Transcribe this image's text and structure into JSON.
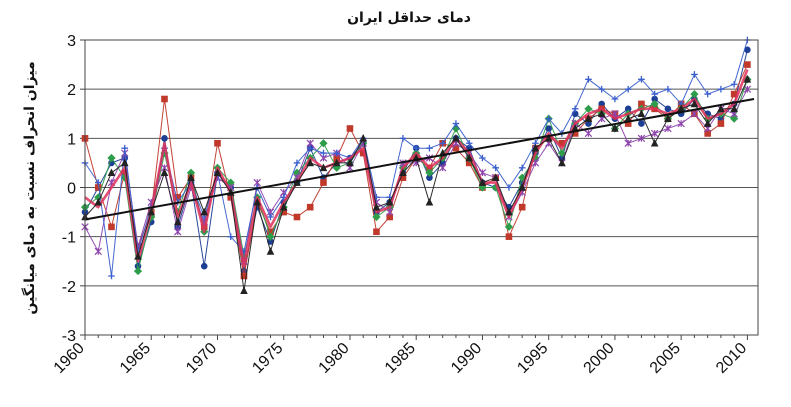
{
  "chart_data": {
    "type": "line",
    "title": "دمای حداقل ایران",
    "ylabel": "میزان انحراف نسبت به دمای میانگین",
    "xlabel": "",
    "xlim": [
      1960,
      2010.8
    ],
    "ylim": [
      -3,
      3
    ],
    "x_ticks": [
      "1960",
      "1965",
      "1970",
      "1975",
      "1980",
      "1985",
      "1990",
      "1995",
      "2000",
      "2005",
      "2010"
    ],
    "y_ticks": [
      "3",
      "2",
      "1",
      "0",
      "-1",
      "-2",
      "-3"
    ],
    "grid": "horizontal",
    "x": [
      1960,
      1961,
      1962,
      1963,
      1964,
      1965,
      1966,
      1967,
      1968,
      1969,
      1970,
      1971,
      1972,
      1973,
      1974,
      1975,
      1976,
      1977,
      1978,
      1979,
      1980,
      1981,
      1982,
      1983,
      1984,
      1985,
      1986,
      1987,
      1988,
      1989,
      1990,
      1991,
      1992,
      1993,
      1994,
      1995,
      1996,
      1997,
      1998,
      1999,
      2000,
      2001,
      2002,
      2003,
      2004,
      2005,
      2006,
      2007,
      2008,
      2009,
      2010
    ],
    "series": [
      {
        "color": "#1c3f94",
        "marker": "circle",
        "values": [
          -0.5,
          0.0,
          0.5,
          0.6,
          -1.6,
          -0.7,
          1.0,
          -0.8,
          0.1,
          -1.6,
          0.3,
          0.0,
          -1.7,
          -0.4,
          -1.1,
          -0.3,
          0.1,
          0.8,
          0.2,
          0.5,
          0.6,
          0.9,
          -0.5,
          -0.3,
          0.3,
          0.8,
          0.2,
          0.5,
          1.0,
          0.8,
          0.1,
          0.0,
          -0.4,
          0.1,
          0.7,
          1.2,
          0.6,
          1.5,
          1.3,
          1.7,
          1.4,
          1.6,
          1.3,
          1.8,
          1.6,
          1.5,
          1.8,
          1.5,
          1.4,
          1.7,
          2.8
        ]
      },
      {
        "color": "#c0392b",
        "marker": "square",
        "values": [
          1.0,
          0.0,
          -0.8,
          0.3,
          -1.2,
          -0.5,
          1.8,
          -0.2,
          0.2,
          -0.8,
          0.9,
          -0.2,
          -1.8,
          -0.3,
          -0.9,
          -0.5,
          -0.6,
          -0.4,
          0.1,
          0.6,
          1.2,
          0.7,
          -0.9,
          -0.6,
          0.2,
          0.6,
          0.4,
          0.9,
          0.8,
          0.5,
          0.0,
          0.2,
          -1.0,
          -0.4,
          0.8,
          1.0,
          0.9,
          1.1,
          1.4,
          1.6,
          1.5,
          1.3,
          1.7,
          1.6,
          1.4,
          1.7,
          1.5,
          1.1,
          1.3,
          1.9,
          2.5
        ]
      },
      {
        "color": "#2e9d4a",
        "marker": "diamond",
        "values": [
          -0.4,
          -0.2,
          0.6,
          0.2,
          -1.7,
          -0.6,
          0.7,
          -0.5,
          0.3,
          -0.9,
          0.4,
          0.1,
          -1.4,
          -0.2,
          -1.0,
          -0.4,
          0.3,
          0.6,
          0.9,
          0.4,
          0.5,
          0.9,
          -0.6,
          -0.4,
          0.4,
          0.7,
          0.3,
          0.6,
          1.2,
          0.6,
          0.0,
          0.0,
          -0.8,
          0.2,
          0.6,
          1.4,
          0.7,
          1.3,
          1.6,
          1.5,
          1.2,
          1.5,
          1.6,
          1.7,
          1.4,
          1.6,
          1.9,
          1.4,
          1.5,
          1.4,
          2.2
        ]
      },
      {
        "color": "#8e44ad",
        "marker": "star",
        "values": [
          -0.8,
          -1.3,
          0.1,
          0.7,
          -1.2,
          -0.3,
          0.4,
          -0.9,
          0.0,
          -0.7,
          0.2,
          0.0,
          -1.5,
          0.1,
          -0.5,
          -0.1,
          0.2,
          0.9,
          0.6,
          0.7,
          0.4,
          0.9,
          -0.3,
          -0.5,
          0.5,
          0.5,
          0.6,
          0.4,
          0.9,
          0.7,
          0.3,
          0.2,
          -0.6,
          -0.1,
          0.5,
          0.9,
          0.5,
          1.3,
          1.1,
          1.4,
          1.5,
          0.9,
          1.0,
          1.1,
          1.2,
          1.3,
          1.5,
          1.2,
          1.6,
          1.5,
          2.0
        ]
      },
      {
        "color": "#3a5fcd",
        "marker": "plus",
        "values": [
          0.5,
          0.1,
          -1.8,
          0.8,
          -1.3,
          -0.4,
          0.8,
          -0.3,
          0.1,
          -0.6,
          0.3,
          -1.0,
          -1.3,
          0.0,
          -0.6,
          -0.2,
          0.5,
          0.8,
          0.7,
          0.7,
          0.6,
          1.0,
          -0.2,
          -0.2,
          1.0,
          0.8,
          0.8,
          0.9,
          1.3,
          0.9,
          0.6,
          0.4,
          0.0,
          0.4,
          0.9,
          1.4,
          1.1,
          1.6,
          2.2,
          2.0,
          1.8,
          2.0,
          2.2,
          1.9,
          2.0,
          1.7,
          2.3,
          1.9,
          2.0,
          2.1,
          3.0
        ]
      },
      {
        "color": "#e0305a",
        "marker": "none",
        "values": [
          -0.2,
          -0.4,
          0.0,
          0.4,
          -1.5,
          -0.5,
          0.9,
          -0.6,
          0.1,
          -0.9,
          0.4,
          -0.1,
          -1.6,
          -0.2,
          -0.8,
          -0.3,
          0.1,
          0.6,
          0.4,
          0.5,
          0.6,
          0.8,
          -0.5,
          -0.4,
          0.4,
          0.7,
          0.4,
          0.6,
          1.0,
          0.7,
          0.1,
          0.1,
          -0.6,
          0.0,
          0.7,
          1.1,
          0.8,
          1.3,
          1.5,
          1.6,
          1.4,
          1.5,
          1.6,
          1.6,
          1.5,
          1.6,
          1.8,
          1.4,
          1.5,
          1.7,
          2.4
        ]
      },
      {
        "color": "#222222",
        "marker": "triangle",
        "values": [
          -0.6,
          -0.3,
          0.3,
          0.5,
          -1.4,
          -0.5,
          0.3,
          -0.7,
          0.2,
          -0.5,
          0.3,
          -0.1,
          -2.1,
          -0.3,
          -1.3,
          -0.4,
          0.1,
          0.5,
          0.4,
          0.5,
          0.5,
          1.0,
          -0.4,
          -0.3,
          0.3,
          0.6,
          -0.3,
          0.7,
          1.0,
          0.6,
          0.1,
          0.2,
          -0.5,
          0.0,
          0.8,
          1.0,
          0.5,
          1.2,
          1.4,
          1.5,
          1.2,
          1.4,
          1.5,
          0.9,
          1.4,
          1.6,
          1.7,
          1.3,
          1.6,
          1.6,
          2.2
        ]
      }
    ],
    "trend": {
      "color": "#111111",
      "from": [
        1960,
        -0.65
      ],
      "to": [
        2010.5,
        1.8
      ]
    }
  }
}
